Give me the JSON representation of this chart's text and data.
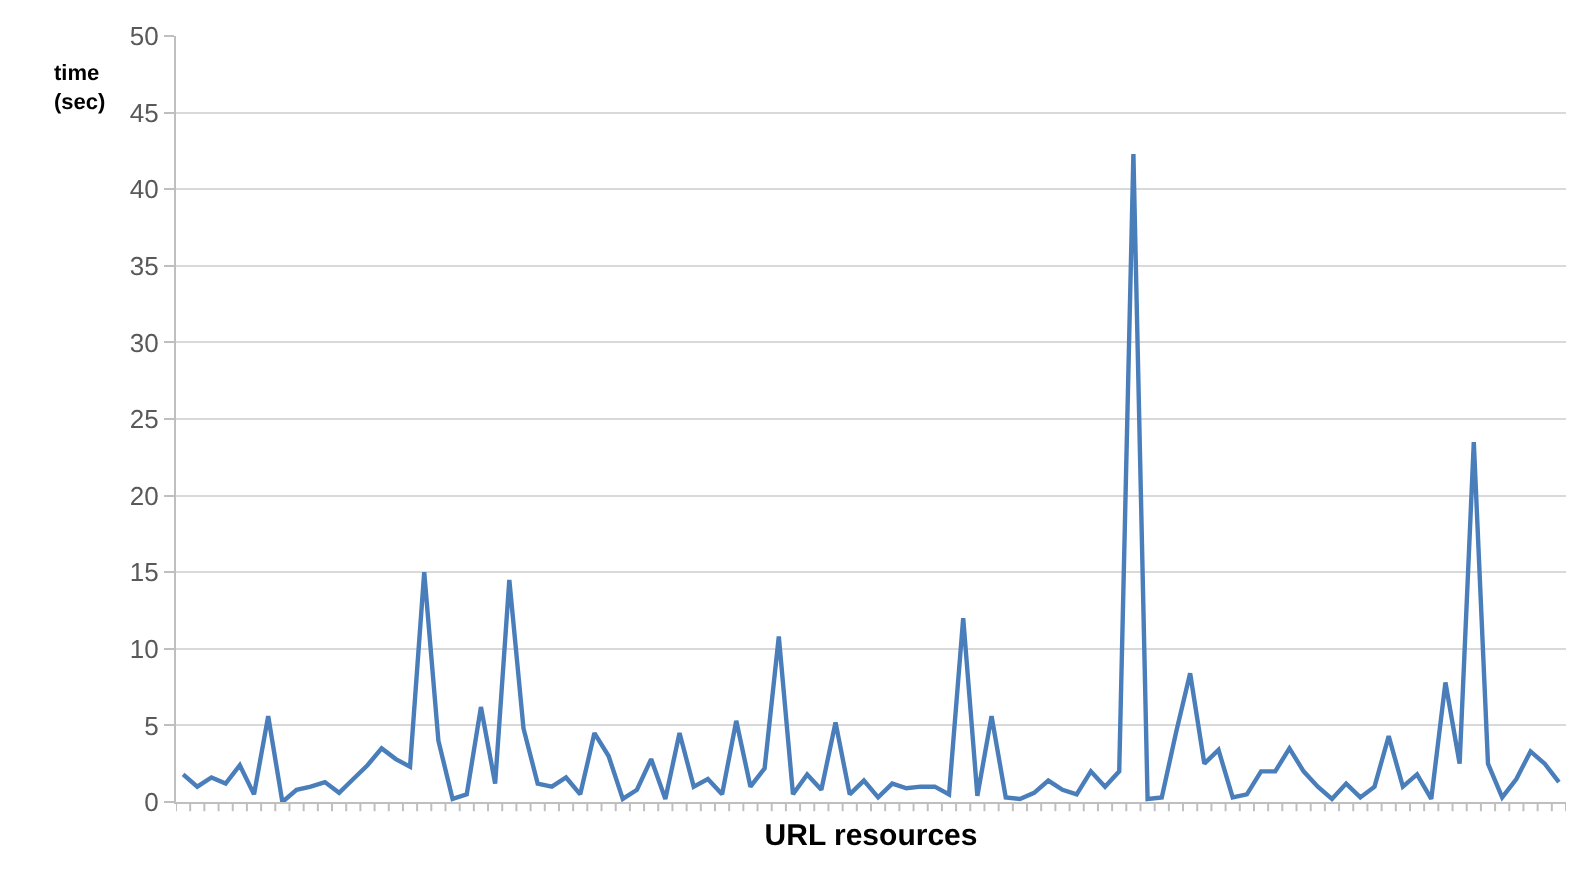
{
  "chart_data": {
    "type": "line",
    "xlabel": "URL resources",
    "ylabel": "time\n(sec)",
    "categories": [
      null,
      null,
      null,
      null,
      null,
      null,
      null,
      null,
      null,
      null,
      null,
      null,
      null,
      null,
      null,
      null,
      null,
      null,
      null,
      null,
      null,
      null,
      null,
      null,
      null,
      null,
      null,
      null,
      null,
      null,
      null,
      null,
      null,
      null,
      null,
      null,
      null,
      null,
      null,
      null,
      null,
      null,
      null,
      null,
      null,
      null,
      null,
      null,
      null,
      null,
      null,
      null,
      null,
      null,
      null,
      null,
      null,
      null,
      null,
      null,
      null,
      null,
      null,
      null,
      null,
      null,
      null,
      null,
      null,
      null,
      null,
      null,
      null,
      null,
      null,
      null,
      null,
      null,
      null,
      null,
      null,
      null,
      null,
      null,
      null,
      null,
      null,
      null,
      null,
      null,
      null,
      null,
      null,
      null,
      null,
      null,
      null,
      null
    ],
    "series": [
      {
        "color": "#4a7ebb",
        "values": [
          1.8,
          1.0,
          1.6,
          1.2,
          2.4,
          0.5,
          5.6,
          0,
          0.8,
          1.0,
          1.3,
          0.6,
          1.5,
          2.4,
          3.5,
          2.8,
          2.3,
          15,
          4,
          0.2,
          0.5,
          6.2,
          1.2,
          14.5,
          4.8,
          1.2,
          1.0,
          1.6,
          0.5,
          4.5,
          3,
          0.2,
          0.8,
          2.8,
          0.2,
          4.5,
          1.0,
          1.5,
          0.5,
          5.3,
          1.0,
          2.2,
          10.8,
          0.5,
          1.8,
          0.8,
          5.2,
          0.5,
          1.4,
          0.3,
          1.2,
          0.9,
          1.0,
          1.0,
          0.5,
          12,
          0.4,
          5.6,
          0.3,
          0.2,
          0.6,
          1.4,
          0.8,
          0.5,
          2.0,
          1.0,
          2.0,
          42.3,
          0.2,
          0.3,
          4.5,
          8.4,
          2.5,
          3.4,
          0.3,
          0.5,
          2.0,
          2.0,
          3.5,
          2.0,
          1.0,
          0.2,
          1.2,
          0.3,
          1.0,
          4.3,
          1.0,
          1.8,
          0.2,
          7.8,
          2.5,
          23.5,
          2.5,
          0.3,
          1.5,
          3.3,
          2.5,
          1.3
        ]
      }
    ],
    "ylim": [
      0,
      50
    ],
    "yticks": [
      0,
      5,
      10,
      15,
      20,
      25,
      30,
      35,
      40,
      45,
      50
    ],
    "grid": "y",
    "legend": false,
    "marker": "none",
    "line_style": "solid"
  }
}
